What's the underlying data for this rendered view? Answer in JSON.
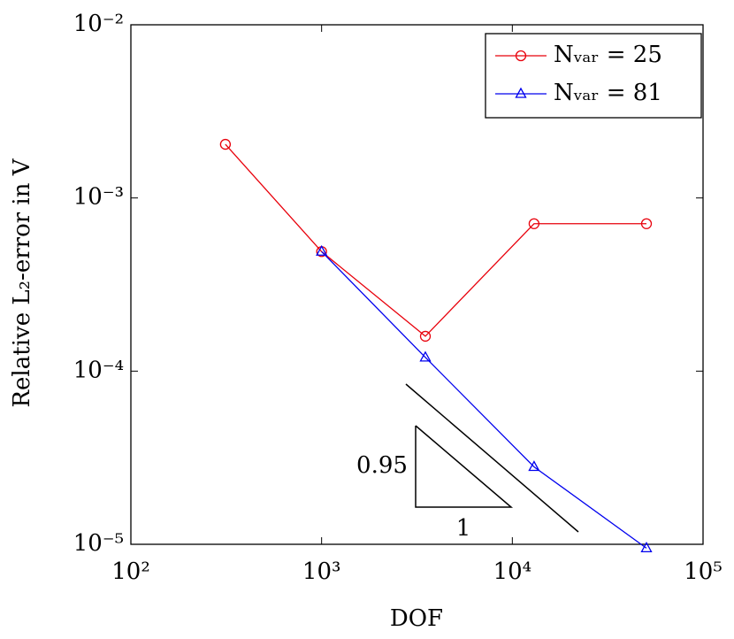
{
  "chart_data": {
    "type": "line",
    "xlabel": "DOF",
    "ylabel": "Relative L₂-error in V",
    "xscale": "log",
    "yscale": "log",
    "xlim": [
      100,
      100000
    ],
    "xticks": [
      {
        "value": 100,
        "label": "10²"
      },
      {
        "value": 1000,
        "label": "10³"
      },
      {
        "value": 10000,
        "label": "10⁴"
      },
      {
        "value": 100000,
        "label": "10⁵"
      }
    ],
    "ylim": [
      1e-05,
      0.01
    ],
    "yticks": [
      {
        "value": 1e-05,
        "label": "10⁻⁵"
      },
      {
        "value": 0.0001,
        "label": "10⁻⁴"
      },
      {
        "value": 0.001,
        "label": "10⁻³"
      },
      {
        "value": 0.01,
        "label": "10⁻²"
      }
    ],
    "legend": "upper right",
    "series": [
      {
        "name": "Nᵥₐᵣ = 25",
        "color": "#e8000b",
        "marker": "circle",
        "x": [
          313,
          1000,
          3500,
          13000,
          50500
        ],
        "values": [
          0.00204,
          0.00049,
          0.000159,
          0.00071,
          0.00071
        ]
      },
      {
        "name": "Nᵥₐᵣ = 81",
        "color": "#0000ee",
        "marker": "triangle",
        "x": [
          1000,
          3500,
          13000,
          50500
        ],
        "values": [
          0.00049,
          0.00012,
          2.8e-05,
          9.5e-06
        ]
      }
    ],
    "annotations": [
      "0.95",
      "1"
    ]
  }
}
